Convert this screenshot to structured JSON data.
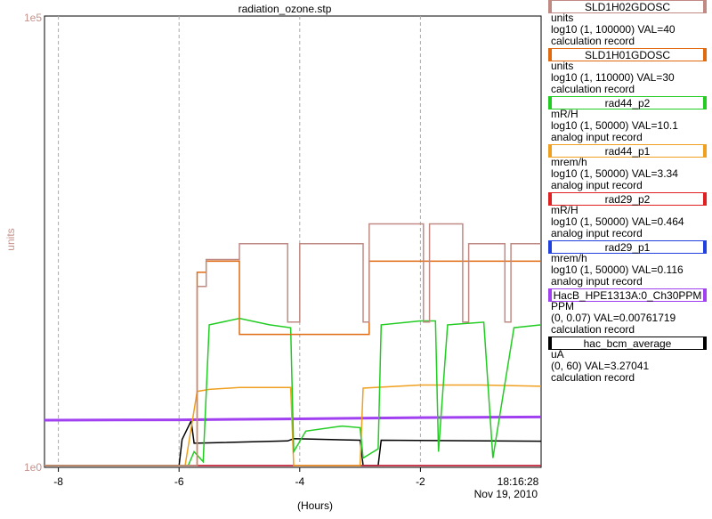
{
  "chart_data": {
    "type": "line",
    "title": "radiation_ozone.stp",
    "ylabel": "units",
    "y_top_label": "1e5",
    "y_bottom_label": "1e0",
    "xlabel": "(Hours)",
    "x_ticks": [
      "-8",
      "-6",
      "-4",
      "-2"
    ],
    "x_end_time": "18:16:28",
    "x_end_date": "Nov 19, 2010",
    "xlim": [
      -8.23,
      0
    ],
    "grid": true,
    "series": [
      {
        "name": "SLD1H02GDOSC",
        "color": "#c08a84",
        "units": "units",
        "range": "log10 (1, 100000) VAL=40",
        "type_desc": "calculation record",
        "points": [
          [
            -8.23,
            1
          ],
          [
            -6.0,
            1
          ],
          [
            -6.0,
            1
          ],
          [
            -5.7,
            1
          ],
          [
            -5.7,
            100
          ],
          [
            -5.55,
            100
          ],
          [
            -5.55,
            200
          ],
          [
            -5.0,
            200
          ],
          [
            -5.0,
            300
          ],
          [
            -4.4,
            300
          ],
          [
            -4.2,
            300
          ],
          [
            -4.2,
            40
          ],
          [
            -4.0,
            40
          ],
          [
            -4.0,
            300
          ],
          [
            -2.95,
            300
          ],
          [
            -2.95,
            40
          ],
          [
            -2.85,
            40
          ],
          [
            -2.85,
            500
          ],
          [
            -1.95,
            500
          ],
          [
            -1.95,
            40
          ],
          [
            -1.85,
            40
          ],
          [
            -1.85,
            500
          ],
          [
            -1.3,
            500
          ],
          [
            -1.3,
            40
          ],
          [
            -1.2,
            40
          ],
          [
            -1.2,
            300
          ],
          [
            -0.6,
            300
          ],
          [
            -0.6,
            40
          ],
          [
            -0.5,
            40
          ],
          [
            -0.5,
            300
          ],
          [
            0,
            300
          ]
        ]
      },
      {
        "name": "SLD1H01GDOSC",
        "color": "#e06a10",
        "units": "units",
        "range": "log10 (1, 110000) VAL=30",
        "type_desc": "calculation record",
        "points": [
          [
            -8.23,
            1
          ],
          [
            -5.7,
            1
          ],
          [
            -5.7,
            150
          ],
          [
            -5.55,
            150
          ],
          [
            -5.55,
            200
          ],
          [
            -5.0,
            200
          ],
          [
            -5.0,
            30
          ],
          [
            -4.4,
            30
          ],
          [
            -4.2,
            30
          ],
          [
            -4.2,
            30
          ],
          [
            -4.0,
            30
          ],
          [
            -4.0,
            30
          ],
          [
            -2.95,
            30
          ],
          [
            -2.85,
            30
          ],
          [
            -2.85,
            200
          ],
          [
            -1.95,
            200
          ],
          [
            -1.85,
            200
          ],
          [
            -1.3,
            200
          ],
          [
            -1.2,
            200
          ],
          [
            -0.6,
            200
          ],
          [
            -0.5,
            200
          ],
          [
            0,
            200
          ]
        ]
      },
      {
        "name": "rad44_p2",
        "color": "#22cc22",
        "units": "mR/H",
        "range": "log10 (1, 50000) VAL=10.1",
        "type_desc": "analog input record",
        "points": [
          [
            -8.23,
            1
          ],
          [
            -6.0,
            1
          ],
          [
            -5.85,
            1
          ],
          [
            -5.75,
            1.4
          ],
          [
            -5.6,
            1.1
          ],
          [
            -5.5,
            30
          ],
          [
            -5.0,
            35
          ],
          [
            -4.5,
            30
          ],
          [
            -4.15,
            28
          ],
          [
            -4.1,
            1.4
          ],
          [
            -3.9,
            2.3
          ],
          [
            -3.3,
            2.6
          ],
          [
            -3.0,
            2.5
          ],
          [
            -2.95,
            1.2
          ],
          [
            -2.7,
            1.5
          ],
          [
            -2.65,
            30
          ],
          [
            -2.0,
            33
          ],
          [
            -1.75,
            33
          ],
          [
            -1.7,
            1.4
          ],
          [
            -1.55,
            30
          ],
          [
            -0.95,
            32
          ],
          [
            -0.8,
            1.2
          ],
          [
            -0.45,
            28
          ],
          [
            0,
            30
          ]
        ]
      },
      {
        "name": "rad44_p1",
        "color": "#f0a020",
        "units": "mrem/h",
        "range": "log10 (1, 50000) VAL=3.34",
        "type_desc": "analog input record",
        "points": [
          [
            -8.23,
            1
          ],
          [
            -6.0,
            1
          ],
          [
            -5.9,
            1
          ],
          [
            -5.7,
            6
          ],
          [
            -5.5,
            6.3
          ],
          [
            -5.0,
            6.6
          ],
          [
            -4.15,
            6.6
          ],
          [
            -4.1,
            1
          ],
          [
            -3.0,
            1
          ],
          [
            -2.95,
            6.5
          ],
          [
            -2.0,
            7
          ],
          [
            -1.0,
            7
          ],
          [
            0,
            6.8
          ]
        ]
      },
      {
        "name": "rad29_p2",
        "color": "#e02020",
        "units": "mR/H",
        "range": "log10 (1, 50000) VAL=0.464",
        "type_desc": "analog input record",
        "points": [
          [
            -8.23,
            1
          ],
          [
            0,
            1
          ]
        ]
      },
      {
        "name": "rad29_p1",
        "color": "#2040e0",
        "units": "mrem/h",
        "range": "log10 (1, 50000) VAL=0.116",
        "type_desc": "analog input record",
        "points": [
          [
            -8.23,
            1
          ],
          [
            0,
            1
          ]
        ]
      },
      {
        "name": "HacB_HPE1313A:0_Ch30PPM",
        "color": "#a040f0",
        "units": "PPM",
        "range": "(0, 0.07) VAL=0.00761719",
        "type_desc": "calculation record",
        "points": [
          [
            -8.23,
            0.0071
          ],
          [
            -6,
            0.00715
          ],
          [
            -4,
            0.0073
          ],
          [
            -2,
            0.0075
          ],
          [
            0,
            0.0076
          ]
        ]
      },
      {
        "name": "hac_bcm_average",
        "color": "#000000",
        "units": "uA",
        "range": "(0, 60) VAL=3.27041",
        "type_desc": "calculation record",
        "points": [
          [
            -8.23,
            0
          ],
          [
            -6.0,
            0
          ],
          [
            -5.95,
            3.5
          ],
          [
            -5.8,
            6.0
          ],
          [
            -5.75,
            3.0
          ],
          [
            -4.2,
            3.3
          ],
          [
            -4.1,
            3.6
          ],
          [
            -3.0,
            3.4
          ],
          [
            -2.95,
            0
          ],
          [
            -2.7,
            0
          ],
          [
            -2.65,
            3.4
          ],
          [
            0,
            3.27
          ]
        ]
      }
    ]
  }
}
